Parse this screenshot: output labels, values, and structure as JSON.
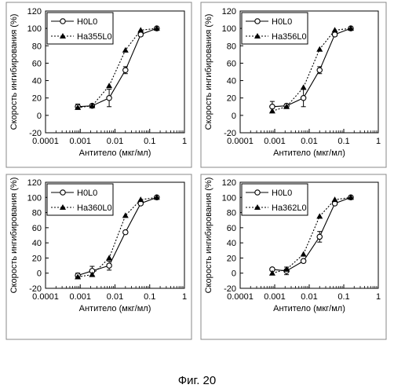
{
  "caption": "Фиг. 20",
  "chart_data": [
    {
      "type": "scatter",
      "xlabel": "Антитело (мкг/мл)",
      "ylabel": "Скорость ингибирования (%)",
      "x_scale": "log",
      "xlim": [
        0.0001,
        1
      ],
      "ylim": [
        -20,
        120
      ],
      "xticks": [
        "0.0001",
        "0.001",
        "0.01",
        "0.1",
        "1"
      ],
      "yticks": [
        "-20",
        "0",
        "20",
        "40",
        "60",
        "80",
        "100",
        "120"
      ],
      "legend_position": "top-left",
      "series": [
        {
          "name": "H0L0",
          "style": "solid",
          "marker": "open-circle",
          "x": [
            0.00085,
            0.0022,
            0.0068,
            0.02,
            0.055,
            0.16
          ],
          "y": [
            10,
            11,
            20,
            52,
            93,
            100
          ],
          "err": [
            3,
            2,
            10,
            4,
            2,
            1
          ]
        },
        {
          "name": "Ha355L0",
          "style": "dotted",
          "marker": "filled-triangle",
          "x": [
            0.00085,
            0.0022,
            0.0068,
            0.02,
            0.055,
            0.16
          ],
          "y": [
            9,
            11,
            34,
            75,
            98,
            100
          ],
          "err": [
            0,
            0,
            0,
            0,
            0,
            0
          ]
        }
      ]
    },
    {
      "type": "scatter",
      "xlabel": "Антитело (мкг/мл)",
      "ylabel": "Скорость ингибирования (%)",
      "x_scale": "log",
      "xlim": [
        0.0001,
        1
      ],
      "ylim": [
        -20,
        120
      ],
      "xticks": [
        "0.0001",
        "0.001",
        "0.01",
        "0.1",
        "1"
      ],
      "yticks": [
        "-20",
        "0",
        "20",
        "40",
        "60",
        "80",
        "100",
        "120"
      ],
      "legend_position": "top-left",
      "series": [
        {
          "name": "H0L0",
          "style": "solid",
          "marker": "open-circle",
          "x": [
            0.00085,
            0.0022,
            0.0068,
            0.02,
            0.055,
            0.16
          ],
          "y": [
            10,
            11,
            20,
            52,
            93,
            100
          ],
          "err": [
            6,
            2,
            10,
            4,
            2,
            1
          ]
        },
        {
          "name": "Ha356L0",
          "style": "dotted",
          "marker": "filled-triangle",
          "x": [
            0.00085,
            0.0022,
            0.0068,
            0.02,
            0.055,
            0.16
          ],
          "y": [
            5,
            10,
            32,
            76,
            98,
            100
          ],
          "err": [
            0,
            0,
            0,
            0,
            0,
            0
          ]
        }
      ]
    },
    {
      "type": "scatter",
      "xlabel": "Антитело (мкг/мл)",
      "ylabel": "Скорость ингибирования (%)",
      "x_scale": "log",
      "xlim": [
        0.0001,
        1
      ],
      "ylim": [
        -20,
        120
      ],
      "xticks": [
        "0.0001",
        "0.001",
        "0.01",
        "0.1",
        "1"
      ],
      "yticks": [
        "-20",
        "0",
        "20",
        "40",
        "60",
        "80",
        "100",
        "120"
      ],
      "legend_position": "top-left",
      "series": [
        {
          "name": "H0L0",
          "style": "solid",
          "marker": "open-circle",
          "x": [
            0.00085,
            0.0022,
            0.0068,
            0.02,
            0.055,
            0.16
          ],
          "y": [
            -3,
            3,
            10,
            54,
            92,
            100
          ],
          "err": [
            3,
            6,
            6,
            2,
            2,
            1
          ]
        },
        {
          "name": "Ha360L0",
          "style": "dotted",
          "marker": "filled-triangle",
          "x": [
            0.00085,
            0.0022,
            0.0068,
            0.02,
            0.055,
            0.16
          ],
          "y": [
            -5,
            -2,
            20,
            76,
            97,
            100
          ],
          "err": [
            0,
            0,
            0,
            0,
            0,
            0
          ]
        }
      ]
    },
    {
      "type": "scatter",
      "xlabel": "Антитело (мкг/мл)",
      "ylabel": "Скорость ингибирования (%)",
      "x_scale": "log",
      "xlim": [
        0.0001,
        1
      ],
      "ylim": [
        -20,
        120
      ],
      "xticks": [
        "0.0001",
        "0.001",
        "0.01",
        "0.1",
        "1"
      ],
      "yticks": [
        "-20",
        "0",
        "20",
        "40",
        "60",
        "80",
        "100",
        "120"
      ],
      "legend_position": "top-left",
      "series": [
        {
          "name": "H0L0",
          "style": "solid",
          "marker": "open-circle",
          "x": [
            0.00085,
            0.0022,
            0.0068,
            0.02,
            0.055,
            0.16
          ],
          "y": [
            5,
            3,
            16,
            48,
            92,
            100
          ],
          "err": [
            2,
            5,
            2,
            7,
            2,
            1
          ]
        },
        {
          "name": "Ha362L0",
          "style": "dotted",
          "marker": "filled-triangle",
          "x": [
            0.00085,
            0.0022,
            0.0068,
            0.02,
            0.055,
            0.16
          ],
          "y": [
            0,
            5,
            25,
            75,
            97,
            100
          ],
          "err": [
            0,
            0,
            0,
            0,
            0,
            0
          ]
        }
      ]
    }
  ]
}
